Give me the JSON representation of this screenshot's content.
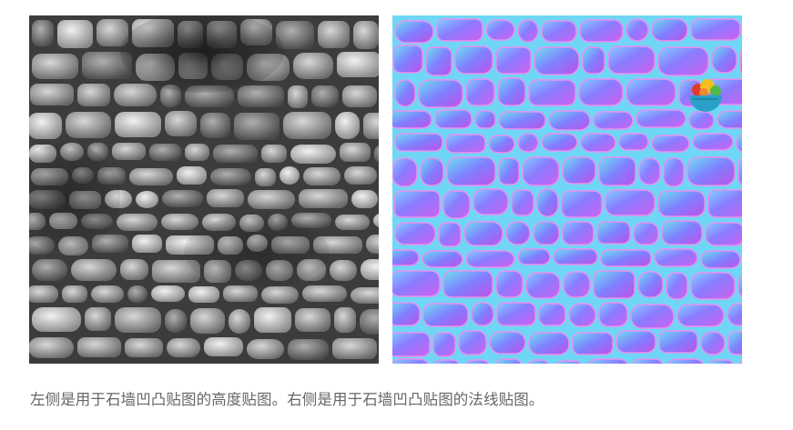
{
  "caption": "左侧是用于石墙凹凸贴图的高度贴图。右侧是用于石墙凹凸贴图的法线贴图。",
  "images": {
    "height_map": {
      "icon": "stone-wall-heightmap-image",
      "tones": [
        "#3a3a3a",
        "#6b6b6b",
        "#9a9a9a",
        "#c8c8c8"
      ]
    },
    "normal_map": {
      "icon": "stone-wall-normalmap-image",
      "tones": [
        "#8a7cff",
        "#b45ff0",
        "#6fd6f5",
        "#e07fe8"
      ]
    }
  },
  "floating_icon": {
    "icon": "food-bowl-icon",
    "colors": [
      "#2aa0c8",
      "#f0c020",
      "#e03a2a",
      "#50b848"
    ]
  }
}
